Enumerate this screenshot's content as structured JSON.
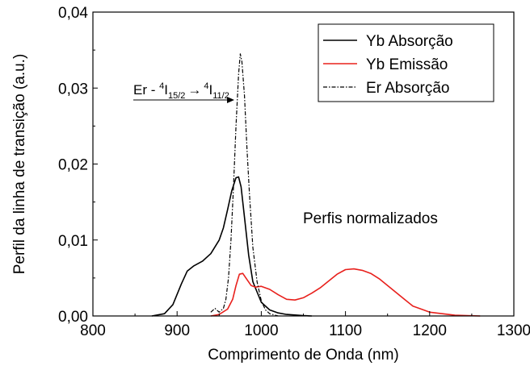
{
  "chart_data": {
    "type": "line",
    "xlabel": "Comprimento de Onda (nm)",
    "ylabel": "Perfil da linha de transição (a.u.)",
    "xlim": [
      800,
      1300
    ],
    "ylim": [
      0,
      0.04
    ],
    "x_ticks": [
      "800",
      "900",
      "1000",
      "1100",
      "1200",
      "1300"
    ],
    "y_ticks": [
      "0,00",
      "0,01",
      "0,02",
      "0,03",
      "0,04"
    ],
    "grid": false,
    "legend_position": "top-right",
    "annotation": "Perfis normalizados",
    "transition_label": {
      "prefix": "Er - ",
      "sup1": "4",
      "base1": "I",
      "sub1": "15/2",
      "arrow": "→",
      "sup2": "4",
      "base2": "I",
      "sub2": "11/2"
    },
    "series": [
      {
        "name": "Yb Absorção",
        "color": "#000000",
        "style": "solid",
        "x": [
          870,
          885,
          895,
          905,
          912,
          920,
          930,
          940,
          950,
          955,
          960,
          965,
          970,
          973,
          976,
          980,
          985,
          990,
          1000,
          1010,
          1020,
          1030,
          1050,
          1060
        ],
        "y": [
          0,
          0.0003,
          0.0015,
          0.0042,
          0.0059,
          0.0066,
          0.0072,
          0.0082,
          0.01,
          0.0116,
          0.014,
          0.0165,
          0.0182,
          0.0183,
          0.017,
          0.013,
          0.008,
          0.0045,
          0.0018,
          0.0008,
          0.0004,
          0.0002,
          5e-05,
          0
        ]
      },
      {
        "name": "Yb Emissão",
        "color": "#e8201c",
        "style": "solid",
        "x": [
          940,
          950,
          960,
          966,
          970,
          974,
          978,
          983,
          988,
          993,
          1000,
          1010,
          1020,
          1030,
          1040,
          1050,
          1060,
          1070,
          1080,
          1090,
          1100,
          1110,
          1120,
          1130,
          1140,
          1150,
          1160,
          1170,
          1180,
          1200,
          1230,
          1260
        ],
        "y": [
          0,
          0.0002,
          0.0009,
          0.0022,
          0.004,
          0.0055,
          0.0056,
          0.0048,
          0.004,
          0.0038,
          0.0039,
          0.0035,
          0.0028,
          0.0022,
          0.0021,
          0.0024,
          0.003,
          0.0037,
          0.0046,
          0.0055,
          0.0061,
          0.0062,
          0.006,
          0.0056,
          0.0049,
          0.004,
          0.0031,
          0.0022,
          0.0013,
          0.0005,
          0.0001,
          0
        ]
      },
      {
        "name": "Er Absorção",
        "color": "#000000",
        "style": "dash-dot",
        "x": [
          940,
          945,
          950,
          955,
          958,
          961,
          964,
          967,
          970,
          973,
          975,
          977,
          980,
          983,
          986,
          990,
          995,
          1000,
          1005,
          1010,
          1020
        ],
        "y": [
          0.0005,
          0.001,
          0.0005,
          0.001,
          0.0022,
          0.005,
          0.01,
          0.017,
          0.025,
          0.0318,
          0.0345,
          0.0335,
          0.029,
          0.022,
          0.016,
          0.009,
          0.0045,
          0.002,
          0.0008,
          0.0003,
          0
        ]
      }
    ]
  }
}
